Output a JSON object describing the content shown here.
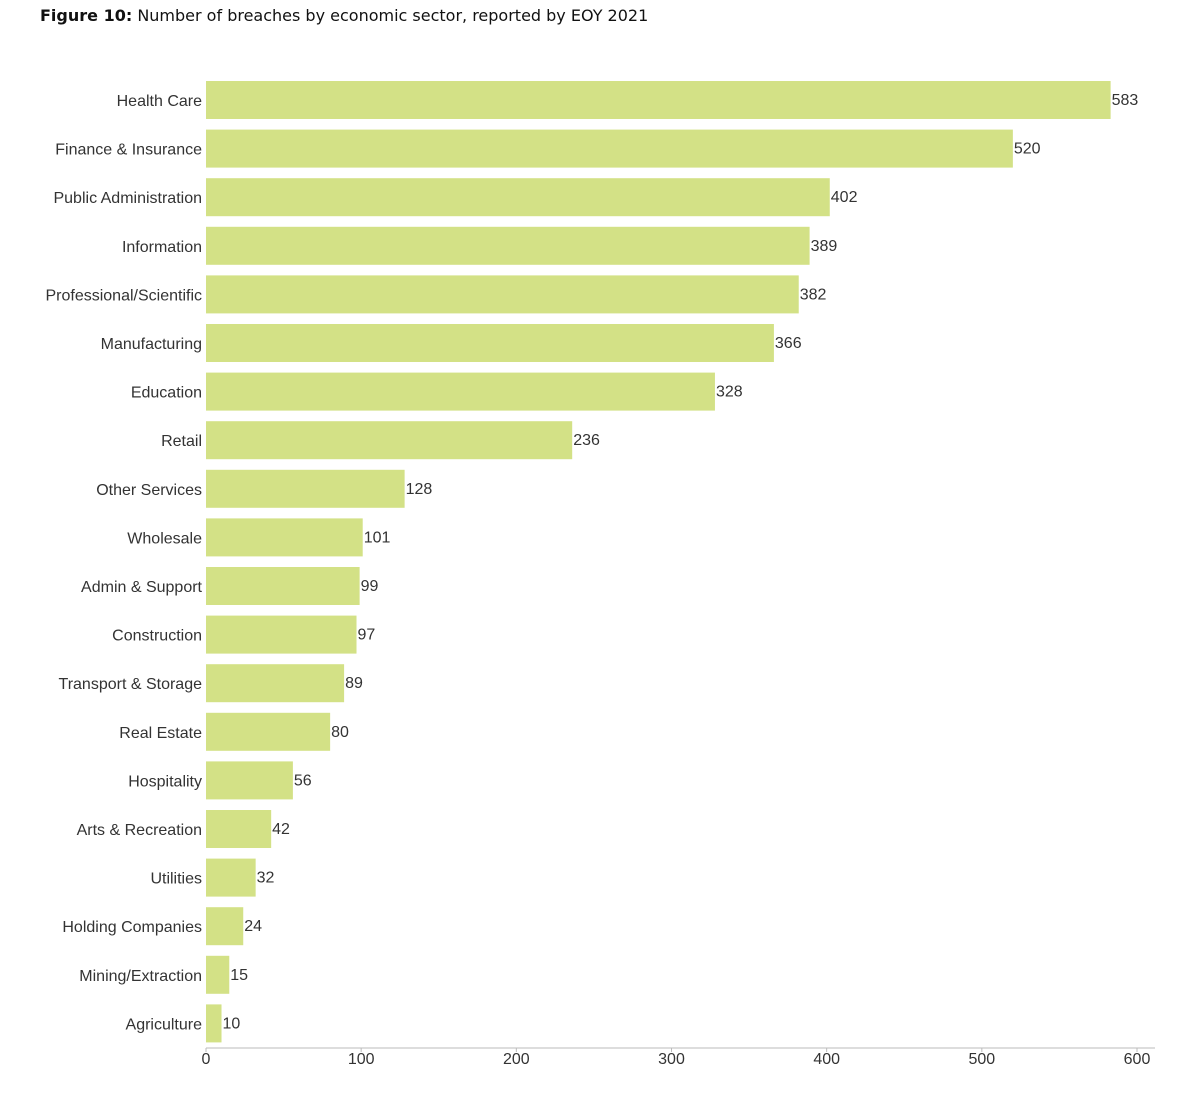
{
  "title": {
    "prefix": "Figure 10:",
    "text": " Number of breaches by economic sector, reported by EOY 2021"
  },
  "chart_data": {
    "type": "bar",
    "orientation": "horizontal",
    "categories": [
      "Health Care",
      "Finance & Insurance",
      "Public Administration",
      "Information",
      "Professional/Scientific",
      "Manufacturing",
      "Education",
      "Retail",
      "Other Services",
      "Wholesale",
      "Admin & Support",
      "Construction",
      "Transport & Storage",
      "Real Estate",
      "Hospitality",
      "Arts & Recreation",
      "Utilities",
      "Holding Companies",
      "Mining/Extraction",
      "Agriculture"
    ],
    "values": [
      583,
      520,
      402,
      389,
      382,
      366,
      328,
      236,
      128,
      101,
      99,
      97,
      89,
      80,
      56,
      42,
      32,
      24,
      15,
      10
    ],
    "xlim": [
      0,
      600
    ],
    "xticks": [
      0,
      100,
      200,
      300,
      400,
      500,
      600
    ],
    "xlabel": "",
    "ylabel": "",
    "grid": false,
    "data_labels": true,
    "bar_color": "#d3e186"
  }
}
